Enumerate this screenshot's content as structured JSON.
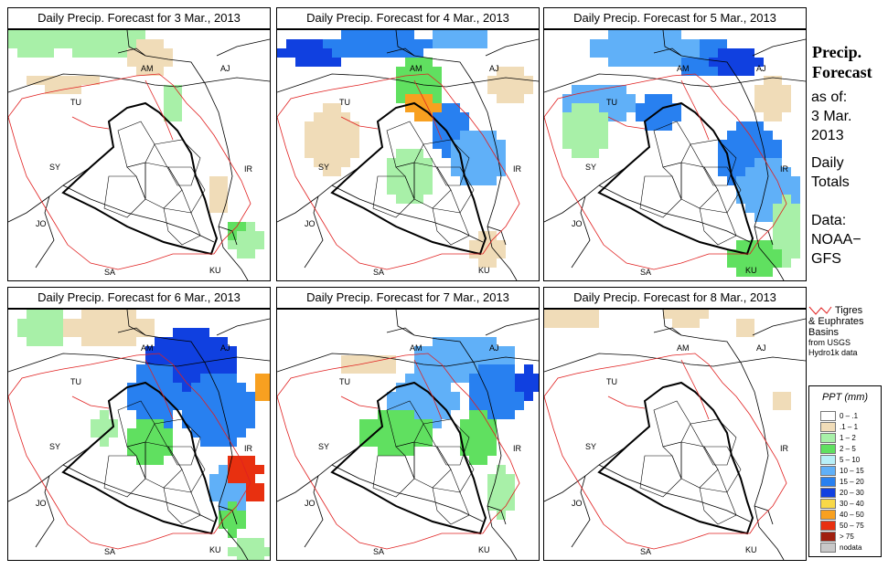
{
  "panels": [
    {
      "title": "Daily Precip. Forecast for  3 Mar., 2013",
      "day": "3 Mar."
    },
    {
      "title": "Daily Precip. Forecast for  4 Mar., 2013",
      "day": "4 Mar."
    },
    {
      "title": "Daily Precip. Forecast for  5 Mar., 2013",
      "day": "5 Mar."
    },
    {
      "title": "Daily Precip. Forecast for  6 Mar., 2013",
      "day": "6 Mar."
    },
    {
      "title": "Daily Precip. Forecast for  7 Mar., 2013",
      "day": "7 Mar."
    },
    {
      "title": "Daily Precip. Forecast for  8 Mar., 2013",
      "day": "8 Mar."
    }
  ],
  "country_labels": [
    "AM",
    "AJ",
    "TU",
    "SY",
    "IR",
    "JO",
    "SA",
    "KU"
  ],
  "side": {
    "title_line1": "Precip.",
    "title_line2": "Forecast",
    "as_of": "as of:",
    "date_line1": "3 Mar.",
    "date_line2": "2013",
    "daily": "Daily",
    "totals": "Totals",
    "data_label": "Data:",
    "data_line1": "NOAA−",
    "data_line2": "GFS"
  },
  "basin_legend": {
    "line1": "Tigres",
    "line2": "& Euphrates",
    "line3": "Basins",
    "line4": "from USGS",
    "line5": "Hydro1k data",
    "color": "#e02020"
  },
  "ppt_legend": {
    "title": "PPT (mm)",
    "classes": [
      {
        "label": "0 – .1",
        "color": "#ffffff"
      },
      {
        "label": ".1 – 1",
        "color": "#f0dcb8"
      },
      {
        "label": "1 – 2",
        "color": "#a8f0a8"
      },
      {
        "label": "2 – 5",
        "color": "#60e060"
      },
      {
        "label": "5 – 10",
        "color": "#b8f0f8"
      },
      {
        "label": "10 – 15",
        "color": "#60b0f8"
      },
      {
        "label": "15 – 20",
        "color": "#2880f0"
      },
      {
        "label": "20 – 30",
        "color": "#1040e0"
      },
      {
        "label": "30 – 40",
        "color": "#f8d848"
      },
      {
        "label": "40 – 50",
        "color": "#f8a020"
      },
      {
        "label": "50 – 75",
        "color": "#e83010"
      },
      {
        "label": "> 75",
        "color": "#a02010"
      },
      {
        "label": "nodata",
        "color": "#c8c8c8"
      }
    ]
  }
}
